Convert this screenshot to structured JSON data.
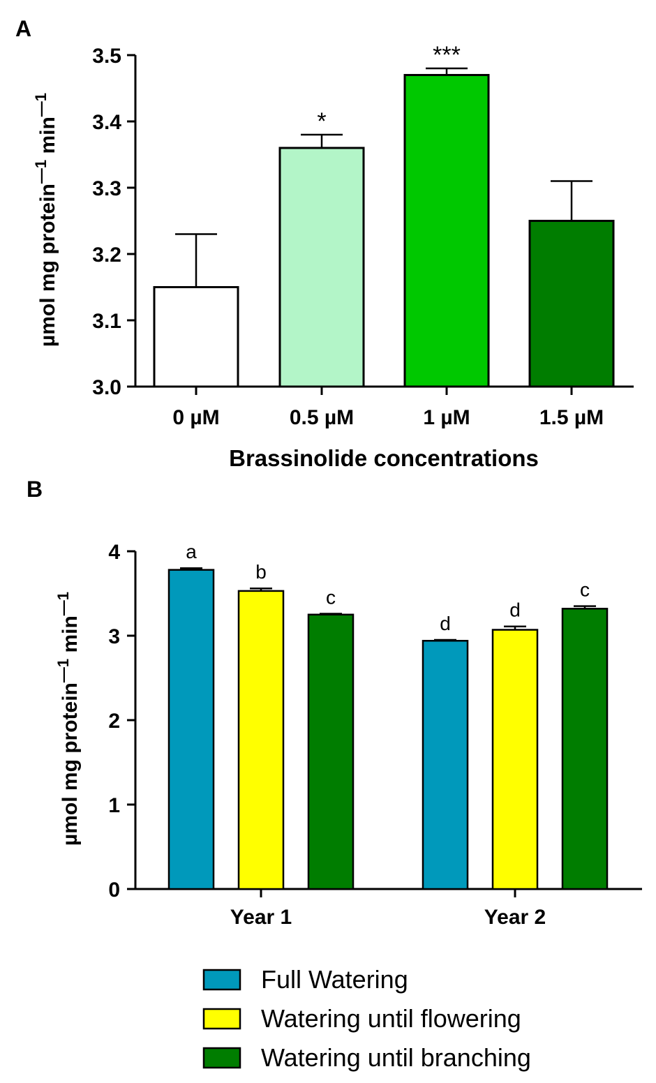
{
  "chart_data": [
    {
      "panel": "A",
      "type": "bar",
      "title": "",
      "xlabel": "Brassinolide concentrations",
      "ylabel_main": "µmol mg protein",
      "ylabel_sup1": "—1",
      "ylabel_mid": " min",
      "ylabel_sup2": "—1",
      "ylim": [
        3.0,
        3.5
      ],
      "yticks": [
        3.0,
        3.1,
        3.2,
        3.3,
        3.4,
        3.5
      ],
      "ytick_labels": [
        "3.0",
        "3.1",
        "3.2",
        "3.3",
        "3.4",
        "3.5"
      ],
      "categories": [
        "0 µM",
        "0.5 µM",
        "1 µM",
        "1.5 µM"
      ],
      "values": [
        3.15,
        3.36,
        3.47,
        3.25
      ],
      "errors": [
        0.08,
        0.02,
        0.01,
        0.06
      ],
      "annotations": [
        "",
        "*",
        "***",
        ""
      ],
      "colors": [
        "#ffffff",
        "#b3f5c8",
        "#00c800",
        "#007d00"
      ]
    },
    {
      "panel": "B",
      "type": "bar",
      "title": "",
      "xlabel": "",
      "ylabel_main": "µmol mg protein",
      "ylabel_sup1": "—1",
      "ylabel_mid": " min",
      "ylabel_sup2": "—1",
      "ylim": [
        0,
        4
      ],
      "yticks": [
        0,
        1,
        2,
        3,
        4
      ],
      "ytick_labels": [
        "0",
        "1",
        "2",
        "3",
        "4"
      ],
      "categories": [
        "Year 1",
        "Year 2"
      ],
      "series": [
        {
          "name": "Full Watering",
          "color": "#0099bb",
          "values": [
            3.78,
            2.94
          ],
          "errors": [
            0.02,
            0.01
          ],
          "letters": [
            "a",
            "d"
          ]
        },
        {
          "name": "Watering until flowering",
          "color": "#ffff00",
          "values": [
            3.53,
            3.07
          ],
          "errors": [
            0.03,
            0.04
          ],
          "letters": [
            "b",
            "d"
          ]
        },
        {
          "name": "Watering until branching",
          "color": "#007d00",
          "values": [
            3.25,
            3.32
          ],
          "errors": [
            0.01,
            0.03
          ],
          "letters": [
            "c",
            "c"
          ]
        }
      ]
    }
  ]
}
